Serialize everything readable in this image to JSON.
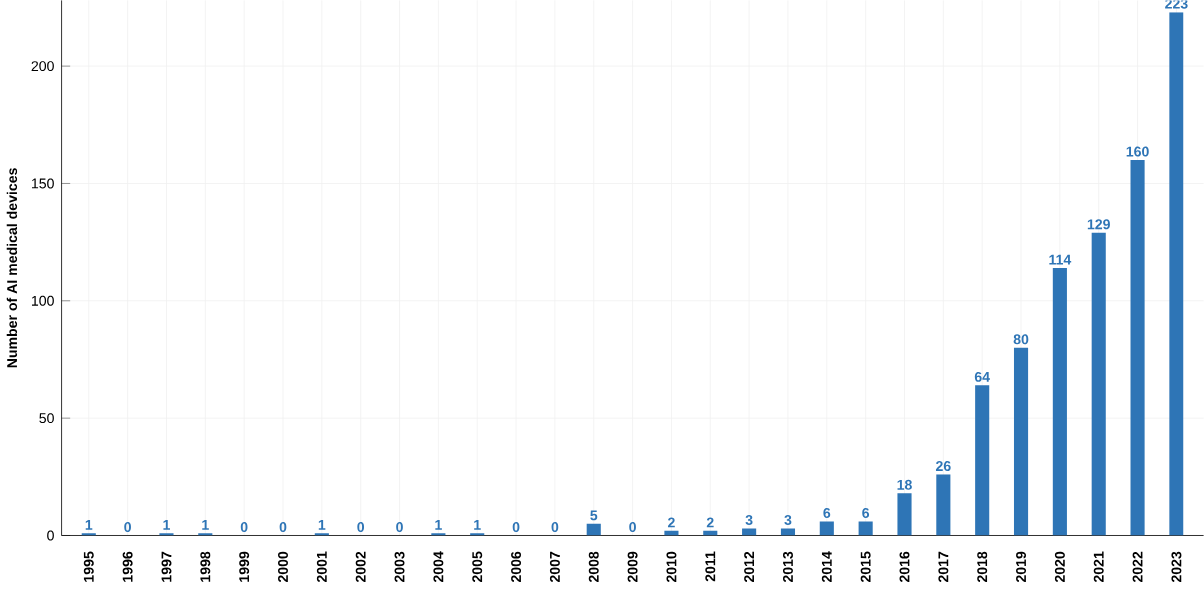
{
  "chart_data": {
    "type": "bar",
    "ylabel": "Number of AI medical devices",
    "categories": [
      "1995",
      "1996",
      "1997",
      "1998",
      "1999",
      "2000",
      "2001",
      "2002",
      "2003",
      "2004",
      "2005",
      "2006",
      "2007",
      "2008",
      "2009",
      "2010",
      "2011",
      "2012",
      "2013",
      "2014",
      "2015",
      "2016",
      "2017",
      "2018",
      "2019",
      "2020",
      "2021",
      "2022",
      "2023"
    ],
    "values": [
      1,
      0,
      1,
      1,
      0,
      0,
      1,
      0,
      0,
      1,
      1,
      0,
      0,
      5,
      0,
      2,
      2,
      3,
      3,
      6,
      6,
      18,
      26,
      64,
      80,
      114,
      129,
      160,
      223
    ],
    "color": "#2e75b6",
    "ylim": [
      0,
      228
    ],
    "yticks": [
      0,
      50,
      100,
      150,
      200
    ],
    "grid": true,
    "data_labels": true
  }
}
